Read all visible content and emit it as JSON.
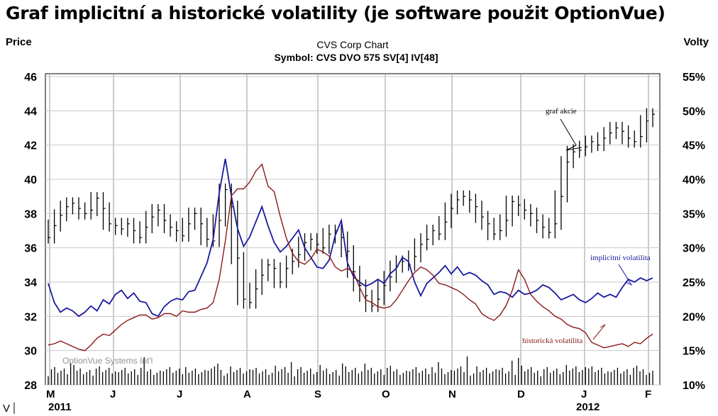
{
  "slide_title": "Graf implicitní a historické volatility (je software použit OptionVue)",
  "chart_data": {
    "type": "line",
    "title": "CVS Corp Chart",
    "subtitle": "Symbol: CVS  DVO 575  SV[4]  IV[48]",
    "left_axis_label": "Price",
    "right_axis_label": "Volty",
    "left_axis_range": [
      28,
      46
    ],
    "left_ticks": [
      "46",
      "44",
      "42",
      "40",
      "38",
      "36",
      "34",
      "32",
      "30",
      "28"
    ],
    "right_axis_range": [
      10,
      55
    ],
    "right_ticks": [
      "55%",
      "50%",
      "45%",
      "40%",
      "35%",
      "30%",
      "25%",
      "20%",
      "15%",
      "10%"
    ],
    "x_months": [
      "M",
      "J",
      "J",
      "A",
      "S",
      "O",
      "N",
      "D",
      "J",
      "F"
    ],
    "x_years": [
      "2011",
      "2012"
    ],
    "grid": true,
    "watermark": "OptionVue Systems Int'l",
    "corner_mark": "V",
    "annotations": {
      "price": "graf akcie",
      "implied_vol": "implicitní volatilita",
      "historical_vol": "historická volatilita"
    },
    "series": [
      {
        "role": "price",
        "color": "#000000",
        "style": "ohlc",
        "points": [
          [
            0,
            36.6
          ],
          [
            1,
            37.3
          ],
          [
            2,
            37.9
          ],
          [
            3,
            38.4
          ],
          [
            4,
            38.6
          ],
          [
            5,
            38.3
          ],
          [
            6,
            38.0
          ],
          [
            7,
            38.2
          ],
          [
            8,
            38.9
          ],
          [
            9,
            38.3
          ],
          [
            10,
            37.4
          ],
          [
            11,
            37.3
          ],
          [
            12,
            37.1
          ],
          [
            13,
            37.4
          ],
          [
            14,
            37.0
          ],
          [
            15,
            36.6
          ],
          [
            16,
            37.2
          ],
          [
            17,
            37.8
          ],
          [
            18,
            38.2
          ],
          [
            19,
            37.6
          ],
          [
            20,
            37.2
          ],
          [
            21,
            37.0
          ],
          [
            22,
            36.7
          ],
          [
            23,
            37.4
          ],
          [
            24,
            38.0
          ],
          [
            25,
            37.4
          ],
          [
            26,
            36.5
          ],
          [
            27,
            36.4
          ],
          [
            28,
            37.6
          ],
          [
            29,
            39.4
          ],
          [
            30,
            38.4
          ],
          [
            31,
            35.4
          ],
          [
            32,
            33.0
          ],
          [
            33,
            32.8
          ],
          [
            34,
            33.6
          ],
          [
            35,
            34.4
          ],
          [
            36,
            35.0
          ],
          [
            37,
            34.8
          ],
          [
            38,
            34.0
          ],
          [
            39,
            34.8
          ],
          [
            40,
            35.2
          ],
          [
            41,
            35.6
          ],
          [
            42,
            36.3
          ],
          [
            43,
            36.5
          ],
          [
            44,
            36.2
          ],
          [
            45,
            36.0
          ],
          [
            46,
            36.8
          ],
          [
            47,
            37.0
          ],
          [
            48,
            36.6
          ],
          [
            49,
            35.8
          ],
          [
            50,
            34.6
          ],
          [
            51,
            33.8
          ],
          [
            52,
            33.2
          ],
          [
            53,
            32.6
          ],
          [
            54,
            33.0
          ],
          [
            55,
            33.8
          ],
          [
            56,
            34.3
          ],
          [
            57,
            34.9
          ],
          [
            58,
            35.2
          ],
          [
            59,
            35.0
          ],
          [
            60,
            35.5
          ],
          [
            61,
            36.2
          ],
          [
            62,
            36.5
          ],
          [
            63,
            37.0
          ],
          [
            64,
            36.8
          ],
          [
            65,
            37.5
          ],
          [
            66,
            38.3
          ],
          [
            67,
            38.8
          ],
          [
            68,
            39.0
          ],
          [
            69,
            38.8
          ],
          [
            70,
            38.4
          ],
          [
            71,
            37.8
          ],
          [
            72,
            37.4
          ],
          [
            73,
            36.8
          ],
          [
            74,
            37.0
          ],
          [
            75,
            37.6
          ],
          [
            76,
            38.7
          ],
          [
            77,
            38.5
          ],
          [
            78,
            38.2
          ],
          [
            79,
            38.0
          ],
          [
            80,
            37.6
          ],
          [
            81,
            37.2
          ],
          [
            82,
            36.9
          ],
          [
            83,
            37.4
          ],
          [
            84,
            39.0
          ],
          [
            85,
            41.0
          ],
          [
            86,
            41.6
          ],
          [
            87,
            41.7
          ],
          [
            88,
            41.9
          ],
          [
            89,
            42.2
          ],
          [
            90,
            42.0
          ],
          [
            91,
            42.4
          ],
          [
            92,
            42.7
          ],
          [
            93,
            43.0
          ],
          [
            94,
            42.8
          ],
          [
            95,
            42.4
          ],
          [
            96,
            42.2
          ],
          [
            97,
            42.5
          ],
          [
            98,
            43.4
          ],
          [
            99,
            43.8
          ]
        ]
      },
      {
        "role": "implied_vol",
        "color": "#1a1aa0",
        "style": "line",
        "points": [
          [
            0,
            24.8
          ],
          [
            1,
            22.0
          ],
          [
            2,
            20.6
          ],
          [
            3,
            21.2
          ],
          [
            4,
            20.8
          ],
          [
            5,
            20.0
          ],
          [
            6,
            20.6
          ],
          [
            7,
            21.5
          ],
          [
            8,
            20.8
          ],
          [
            9,
            22.4
          ],
          [
            10,
            21.8
          ],
          [
            11,
            23.2
          ],
          [
            12,
            23.8
          ],
          [
            13,
            22.6
          ],
          [
            14,
            23.4
          ],
          [
            15,
            22.2
          ],
          [
            16,
            22.0
          ],
          [
            17,
            20.4
          ],
          [
            18,
            20.0
          ],
          [
            19,
            21.4
          ],
          [
            20,
            22.2
          ],
          [
            21,
            22.6
          ],
          [
            22,
            22.4
          ],
          [
            23,
            23.6
          ],
          [
            24,
            23.8
          ],
          [
            25,
            25.8
          ],
          [
            26,
            27.8
          ],
          [
            27,
            31.2
          ],
          [
            28,
            38.0
          ],
          [
            29,
            43.0
          ],
          [
            30,
            37.5
          ],
          [
            31,
            32.8
          ],
          [
            32,
            30.2
          ],
          [
            33,
            31.6
          ],
          [
            34,
            33.8
          ],
          [
            35,
            36.0
          ],
          [
            36,
            33.2
          ],
          [
            37,
            30.8
          ],
          [
            38,
            29.4
          ],
          [
            39,
            30.2
          ],
          [
            40,
            31.4
          ],
          [
            41,
            32.6
          ],
          [
            42,
            30.0
          ],
          [
            43,
            28.6
          ],
          [
            44,
            27.2
          ],
          [
            45,
            27.0
          ],
          [
            46,
            28.2
          ],
          [
            47,
            31.8
          ],
          [
            48,
            34.0
          ],
          [
            49,
            27.8
          ],
          [
            50,
            25.8
          ],
          [
            51,
            25.0
          ],
          [
            52,
            24.4
          ],
          [
            53,
            24.8
          ],
          [
            54,
            25.4
          ],
          [
            55,
            24.8
          ],
          [
            56,
            26.2
          ],
          [
            57,
            27.0
          ],
          [
            58,
            28.6
          ],
          [
            59,
            28.0
          ],
          [
            60,
            25.0
          ],
          [
            61,
            23.0
          ],
          [
            62,
            24.8
          ],
          [
            63,
            25.6
          ],
          [
            64,
            26.4
          ],
          [
            65,
            27.4
          ],
          [
            66,
            26.2
          ],
          [
            67,
            27.2
          ],
          [
            68,
            26.0
          ],
          [
            69,
            26.4
          ],
          [
            70,
            26.0
          ],
          [
            71,
            25.2
          ],
          [
            72,
            24.6
          ],
          [
            73,
            23.2
          ],
          [
            74,
            23.6
          ],
          [
            75,
            23.4
          ],
          [
            76,
            22.8
          ],
          [
            77,
            23.8
          ],
          [
            78,
            23.2
          ],
          [
            79,
            23.4
          ],
          [
            80,
            23.8
          ],
          [
            81,
            24.6
          ],
          [
            82,
            24.2
          ],
          [
            83,
            23.4
          ],
          [
            84,
            22.4
          ],
          [
            85,
            22.8
          ],
          [
            86,
            23.2
          ],
          [
            87,
            22.4
          ],
          [
            88,
            22.0
          ],
          [
            89,
            22.6
          ],
          [
            90,
            23.4
          ],
          [
            91,
            22.8
          ],
          [
            92,
            23.2
          ],
          [
            93,
            22.8
          ],
          [
            94,
            24.2
          ],
          [
            95,
            25.4
          ],
          [
            96,
            25.0
          ],
          [
            97,
            25.6
          ],
          [
            98,
            25.2
          ],
          [
            99,
            25.6
          ]
        ]
      },
      {
        "role": "historical_vol",
        "color": "#8b1818",
        "style": "line",
        "points": [
          [
            0,
            15.8
          ],
          [
            1,
            16.0
          ],
          [
            2,
            16.4
          ],
          [
            3,
            16.0
          ],
          [
            4,
            15.6
          ],
          [
            5,
            15.2
          ],
          [
            6,
            15.0
          ],
          [
            7,
            15.8
          ],
          [
            8,
            16.8
          ],
          [
            9,
            17.4
          ],
          [
            10,
            17.2
          ],
          [
            11,
            18.0
          ],
          [
            12,
            18.8
          ],
          [
            13,
            19.4
          ],
          [
            14,
            19.8
          ],
          [
            15,
            20.2
          ],
          [
            16,
            20.2
          ],
          [
            17,
            19.6
          ],
          [
            18,
            19.8
          ],
          [
            19,
            20.4
          ],
          [
            20,
            20.4
          ],
          [
            21,
            20.0
          ],
          [
            22,
            20.8
          ],
          [
            23,
            20.6
          ],
          [
            24,
            20.6
          ],
          [
            25,
            21.0
          ],
          [
            26,
            21.2
          ],
          [
            27,
            22.0
          ],
          [
            28,
            25.4
          ],
          [
            29,
            31.0
          ],
          [
            30,
            37.6
          ],
          [
            31,
            38.6
          ],
          [
            32,
            38.6
          ],
          [
            33,
            39.6
          ],
          [
            34,
            41.2
          ],
          [
            35,
            42.2
          ],
          [
            36,
            39.0
          ],
          [
            37,
            38.2
          ],
          [
            38,
            34.6
          ],
          [
            39,
            31.4
          ],
          [
            40,
            29.2
          ],
          [
            41,
            28.0
          ],
          [
            42,
            27.6
          ],
          [
            43,
            28.4
          ],
          [
            44,
            29.8
          ],
          [
            45,
            29.4
          ],
          [
            46,
            28.8
          ],
          [
            47,
            27.2
          ],
          [
            48,
            26.6
          ],
          [
            49,
            27.0
          ],
          [
            50,
            26.4
          ],
          [
            51,
            24.2
          ],
          [
            52,
            22.4
          ],
          [
            53,
            22.0
          ],
          [
            54,
            21.4
          ],
          [
            55,
            21.2
          ],
          [
            56,
            21.4
          ],
          [
            57,
            22.4
          ],
          [
            58,
            23.8
          ],
          [
            59,
            25.2
          ],
          [
            60,
            26.4
          ],
          [
            61,
            27.2
          ],
          [
            62,
            26.8
          ],
          [
            63,
            26.0
          ],
          [
            64,
            24.8
          ],
          [
            65,
            24.6
          ],
          [
            66,
            24.2
          ],
          [
            67,
            23.8
          ],
          [
            68,
            23.2
          ],
          [
            69,
            22.4
          ],
          [
            70,
            21.8
          ],
          [
            71,
            20.4
          ],
          [
            72,
            19.8
          ],
          [
            73,
            19.4
          ],
          [
            74,
            20.2
          ],
          [
            75,
            21.6
          ],
          [
            76,
            23.8
          ],
          [
            77,
            26.8
          ],
          [
            78,
            25.4
          ],
          [
            79,
            23.2
          ],
          [
            80,
            22.2
          ],
          [
            81,
            21.4
          ],
          [
            82,
            20.8
          ],
          [
            83,
            20.0
          ],
          [
            84,
            19.6
          ],
          [
            85,
            18.8
          ],
          [
            86,
            18.4
          ],
          [
            87,
            18.2
          ],
          [
            88,
            17.6
          ],
          [
            89,
            16.2
          ],
          [
            90,
            15.8
          ],
          [
            91,
            15.4
          ],
          [
            92,
            15.6
          ],
          [
            93,
            15.8
          ],
          [
            94,
            16.0
          ],
          [
            95,
            15.6
          ],
          [
            96,
            16.2
          ],
          [
            97,
            16.0
          ],
          [
            98,
            16.8
          ],
          [
            99,
            17.4
          ]
        ]
      }
    ]
  }
}
